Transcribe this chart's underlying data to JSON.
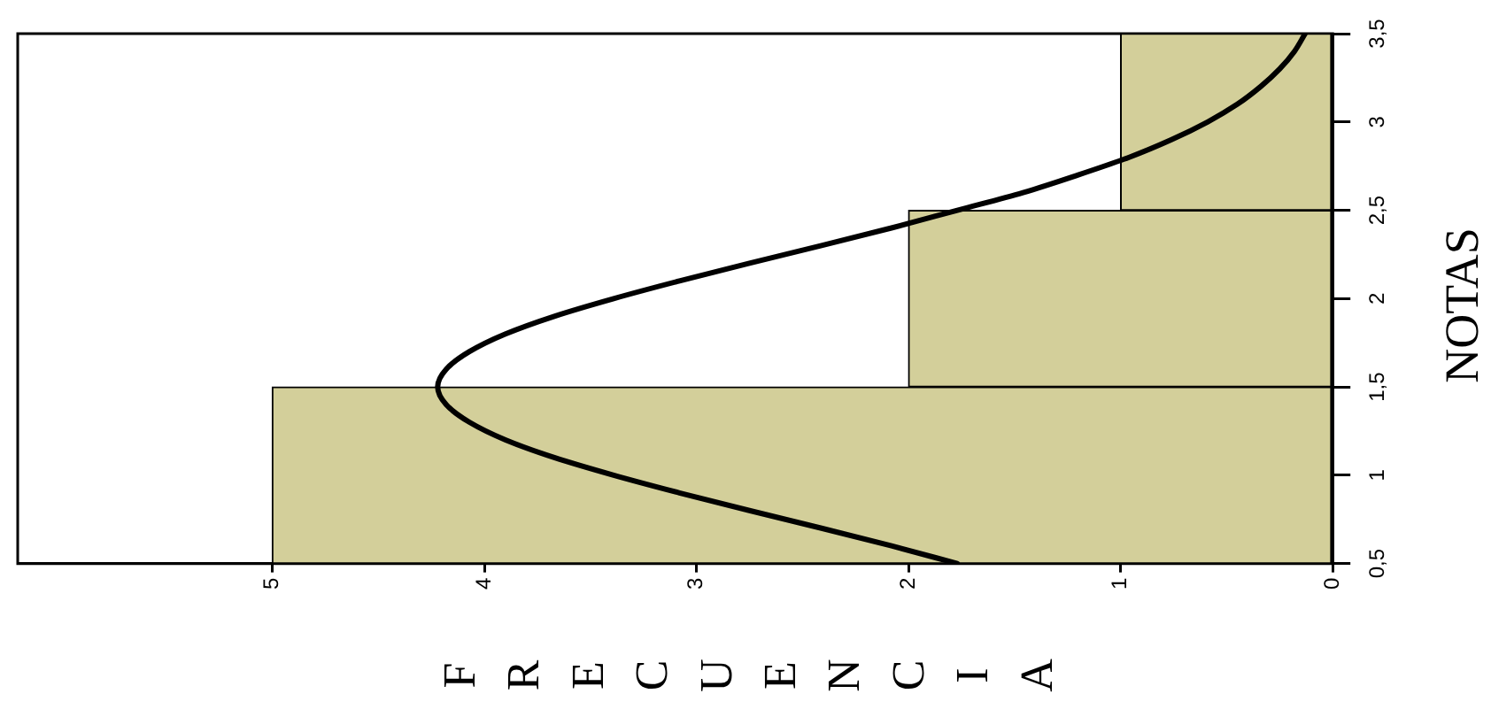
{
  "chart_data": {
    "type": "histogram",
    "orientation": "horizontal",
    "xlabel": "FRECUENCIA",
    "ylabel": "NOTAS",
    "bins": [
      0.5,
      1.5,
      2.5,
      3.5
    ],
    "series": [
      {
        "color": "#d3cf9a",
        "values": [
          5,
          2,
          1
        ]
      },
      {
        "type": "line",
        "color": "#000000",
        "x": [
          0.5,
          0.6,
          0.7,
          0.8,
          0.9,
          1.0,
          1.1,
          1.2,
          1.3,
          1.4,
          1.5,
          1.6,
          1.7,
          1.8,
          1.9,
          2.0,
          2.1,
          2.2,
          2.3,
          2.4,
          2.5,
          2.6,
          2.7,
          2.8,
          2.9,
          3.0,
          3.1,
          3.2,
          3.3,
          3.4,
          3.5
        ],
        "values": [
          1.77,
          2.08,
          2.41,
          2.75,
          3.08,
          3.39,
          3.67,
          3.9,
          4.07,
          4.18,
          4.22,
          4.18,
          4.07,
          3.9,
          3.67,
          3.39,
          3.08,
          2.75,
          2.41,
          2.08,
          1.77,
          1.46,
          1.2,
          0.96,
          0.76,
          0.59,
          0.45,
          0.34,
          0.25,
          0.18,
          0.13
        ]
      }
    ],
    "xlim": [
      6.2,
      0
    ],
    "xticks": [
      0,
      1,
      2,
      3,
      4,
      5
    ],
    "ylim": [
      0.5,
      3.5
    ],
    "yticks": [
      {
        "value": 0.5,
        "label": "0,5"
      },
      1,
      {
        "value": 1.5,
        "label": "1,5"
      },
      2,
      {
        "value": 2.5,
        "label": "2,5"
      },
      3,
      {
        "value": 3.5,
        "label": "3,5"
      }
    ],
    "grid": false
  }
}
